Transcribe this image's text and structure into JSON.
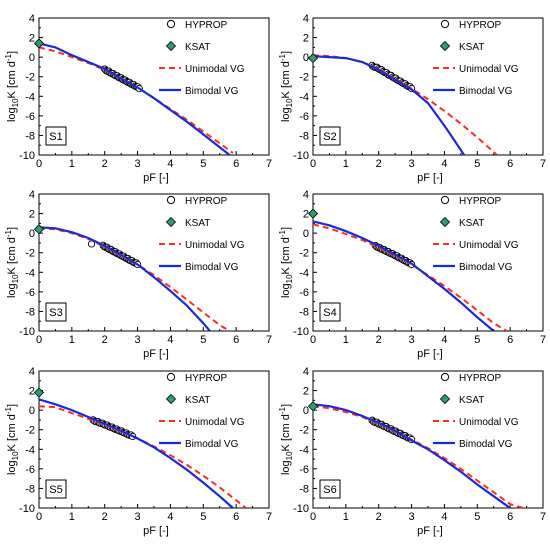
{
  "legend": {
    "hyprop": "HYPROP",
    "ksat": "KSAT",
    "unimodal": "Unimodal VG",
    "bimodal": "Bimodal VG"
  },
  "axis": {
    "xlabel": "pF [-]",
    "ylabel_main": "log",
    "ylabel_sub": "10",
    "ylabel_rest": "K [cm d",
    "ylabel_sup": "-1",
    "ylabel_close": "]"
  },
  "colors": {
    "unimodal": "#ff2a2a",
    "bimodal": "#1a2bd6",
    "ksat": "#2aa070",
    "hyprop_edge": "#000000"
  },
  "chart_data": [
    {
      "type": "line",
      "panel_label": "S1",
      "xlabel": "pF [-]",
      "ylabel": "log10K [cm d-1]",
      "xlim": [
        0,
        7
      ],
      "ylim": [
        -10,
        4
      ],
      "xticks": [
        0,
        1,
        2,
        3,
        4,
        5,
        6,
        7
      ],
      "yticks": [
        4,
        2,
        0,
        -2,
        -4,
        -6,
        -8,
        -10
      ],
      "ksat": [
        [
          0,
          1.4
        ]
      ],
      "hyprop_range": [
        2.0,
        3.05
      ],
      "series": [
        {
          "name": "Unimodal VG",
          "x": [
            0,
            0.5,
            1,
            1.5,
            2,
            2.5,
            3,
            3.5,
            4,
            4.5,
            5,
            5.5,
            5.9
          ],
          "y": [
            1.0,
            0.6,
            0.0,
            -0.6,
            -1.3,
            -2.2,
            -3.1,
            -4.2,
            -5.3,
            -6.4,
            -7.6,
            -8.8,
            -9.8
          ]
        },
        {
          "name": "Bimodal VG",
          "x": [
            0,
            0.5,
            1,
            1.5,
            2,
            2.5,
            3,
            3.5,
            4,
            4.5,
            5,
            5.5,
            5.8
          ],
          "y": [
            1.4,
            1.0,
            0.2,
            -0.5,
            -1.2,
            -2.2,
            -3.1,
            -4.2,
            -5.4,
            -6.6,
            -7.9,
            -9.2,
            -10.0
          ]
        }
      ]
    },
    {
      "type": "line",
      "panel_label": "S2",
      "xlabel": "pF [-]",
      "ylabel": "log10K [cm d-1]",
      "xlim": [
        0,
        7
      ],
      "ylim": [
        -10,
        4
      ],
      "xticks": [
        0,
        1,
        2,
        3,
        4,
        5,
        6,
        7
      ],
      "yticks": [
        4,
        2,
        0,
        -2,
        -4,
        -6,
        -8,
        -10
      ],
      "ksat": [
        [
          0,
          -0.1
        ]
      ],
      "hyprop_range": [
        1.8,
        3.0
      ],
      "series": [
        {
          "name": "Unimodal VG",
          "x": [
            0,
            0.5,
            1,
            1.5,
            2,
            2.5,
            3,
            3.5,
            4,
            4.5,
            5,
            5.6
          ],
          "y": [
            0.2,
            0.1,
            -0.1,
            -0.5,
            -1.2,
            -2.2,
            -3.2,
            -4.3,
            -5.5,
            -6.8,
            -8.2,
            -10.0
          ]
        },
        {
          "name": "Bimodal VG",
          "x": [
            0,
            0.5,
            1,
            1.5,
            2,
            2.5,
            3,
            3.5,
            4,
            4.3,
            4.6
          ],
          "y": [
            0.1,
            0.0,
            -0.1,
            -0.5,
            -1.3,
            -2.3,
            -3.3,
            -4.7,
            -7.0,
            -8.5,
            -10.0
          ]
        }
      ]
    },
    {
      "type": "line",
      "panel_label": "S3",
      "xlabel": "pF [-]",
      "ylabel": "log10K [cm d-1]",
      "xlim": [
        0,
        7
      ],
      "ylim": [
        -10,
        4
      ],
      "xticks": [
        0,
        1,
        2,
        3,
        4,
        5,
        6,
        7
      ],
      "yticks": [
        4,
        2,
        0,
        -2,
        -4,
        -6,
        -8,
        -10
      ],
      "ksat": [
        [
          0,
          0.4
        ]
      ],
      "hyprop_range": [
        1.95,
        3.0
      ],
      "hyprop_extra": [
        [
          1.6,
          -1.1
        ]
      ],
      "series": [
        {
          "name": "Unimodal VG",
          "x": [
            0,
            0.5,
            1,
            1.5,
            2,
            2.5,
            3,
            3.5,
            4,
            4.5,
            5,
            5.5,
            5.8
          ],
          "y": [
            0.5,
            0.4,
            0.0,
            -0.6,
            -1.4,
            -2.3,
            -3.2,
            -4.3,
            -5.5,
            -6.8,
            -8.1,
            -9.4,
            -10.0
          ]
        },
        {
          "name": "Bimodal VG",
          "x": [
            0,
            0.5,
            1,
            1.5,
            2,
            2.5,
            3,
            3.5,
            4,
            4.5,
            5,
            5.2
          ],
          "y": [
            0.6,
            0.5,
            0.1,
            -0.5,
            -1.3,
            -2.2,
            -3.2,
            -4.5,
            -5.9,
            -7.4,
            -9.2,
            -10.0
          ]
        }
      ]
    },
    {
      "type": "line",
      "panel_label": "S4",
      "xlabel": "pF [-]",
      "ylabel": "log10K [cm d-1]",
      "xlim": [
        0,
        7
      ],
      "ylim": [
        -10,
        4
      ],
      "xticks": [
        0,
        1,
        2,
        3,
        4,
        5,
        6,
        7
      ],
      "yticks": [
        4,
        2,
        0,
        -2,
        -4,
        -6,
        -8,
        -10
      ],
      "ksat": [
        [
          0,
          2.0
        ]
      ],
      "hyprop_range": [
        1.9,
        3.0
      ],
      "series": [
        {
          "name": "Unimodal VG",
          "x": [
            0,
            0.5,
            1,
            1.5,
            2,
            2.5,
            3,
            3.5,
            4,
            4.5,
            5,
            5.5,
            5.9
          ],
          "y": [
            0.9,
            0.5,
            -0.1,
            -0.7,
            -1.5,
            -2.3,
            -3.2,
            -4.3,
            -5.4,
            -6.6,
            -7.9,
            -9.2,
            -10.0
          ]
        },
        {
          "name": "Bimodal VG",
          "x": [
            0,
            0.5,
            1,
            1.5,
            2,
            2.5,
            3,
            3.5,
            4,
            4.5,
            5,
            5.5
          ],
          "y": [
            1.2,
            0.8,
            0.2,
            -0.5,
            -1.3,
            -2.2,
            -3.1,
            -4.4,
            -5.7,
            -7.1,
            -8.6,
            -10.0
          ]
        }
      ]
    },
    {
      "type": "line",
      "panel_label": "S5",
      "xlabel": "pF [-]",
      "ylabel": "log10K [cm d-1]",
      "xlim": [
        0,
        7
      ],
      "ylim": [
        -10,
        4
      ],
      "xticks": [
        0,
        1,
        2,
        3,
        4,
        5,
        6,
        7
      ],
      "yticks": [
        4,
        2,
        0,
        -2,
        -4,
        -6,
        -8,
        -10
      ],
      "ksat": [
        [
          0,
          1.8
        ]
      ],
      "hyprop_range": [
        1.65,
        2.85
      ],
      "series": [
        {
          "name": "Unimodal VG",
          "x": [
            0,
            0.5,
            1,
            1.5,
            2,
            2.5,
            3,
            3.5,
            4,
            4.5,
            5,
            5.5,
            6,
            6.3
          ],
          "y": [
            0.4,
            0.3,
            -0.3,
            -0.9,
            -1.5,
            -2.2,
            -2.9,
            -3.7,
            -4.6,
            -5.6,
            -6.7,
            -7.9,
            -9.2,
            -10.0
          ]
        },
        {
          "name": "Bimodal VG",
          "x": [
            0,
            0.5,
            1,
            1.5,
            2,
            2.5,
            3,
            3.5,
            4,
            4.5,
            5,
            5.5,
            5.9
          ],
          "y": [
            1.1,
            0.6,
            0.0,
            -0.7,
            -1.4,
            -2.1,
            -2.9,
            -3.8,
            -4.9,
            -6.1,
            -7.4,
            -8.8,
            -10.0
          ]
        }
      ]
    },
    {
      "type": "line",
      "panel_label": "S6",
      "xlabel": "pF [-]",
      "ylabel": "log10K [cm d-1]",
      "xlim": [
        0,
        7
      ],
      "ylim": [
        -10,
        4
      ],
      "xticks": [
        0,
        1,
        2,
        3,
        4,
        5,
        6,
        7
      ],
      "yticks": [
        4,
        2,
        0,
        -2,
        -4,
        -6,
        -8,
        -10
      ],
      "ksat": [
        [
          0,
          0.4
        ]
      ],
      "hyprop_range": [
        1.8,
        3.0
      ],
      "series": [
        {
          "name": "Unimodal VG",
          "x": [
            0,
            0.5,
            1,
            1.5,
            2,
            2.5,
            3,
            3.5,
            4,
            4.5,
            5,
            5.5,
            6,
            6.4
          ],
          "y": [
            0.4,
            0.2,
            -0.2,
            -0.7,
            -1.4,
            -2.2,
            -3.0,
            -3.9,
            -4.9,
            -6.0,
            -7.2,
            -8.4,
            -9.6,
            -10.0
          ]
        },
        {
          "name": "Bimodal VG",
          "x": [
            0,
            0.5,
            1,
            1.5,
            2,
            2.5,
            3,
            3.5,
            4,
            4.5,
            5,
            5.5,
            6
          ],
          "y": [
            0.6,
            0.4,
            0.0,
            -0.6,
            -1.3,
            -2.1,
            -3.1,
            -4.0,
            -5.1,
            -6.3,
            -7.6,
            -8.8,
            -10.0
          ]
        }
      ]
    }
  ]
}
